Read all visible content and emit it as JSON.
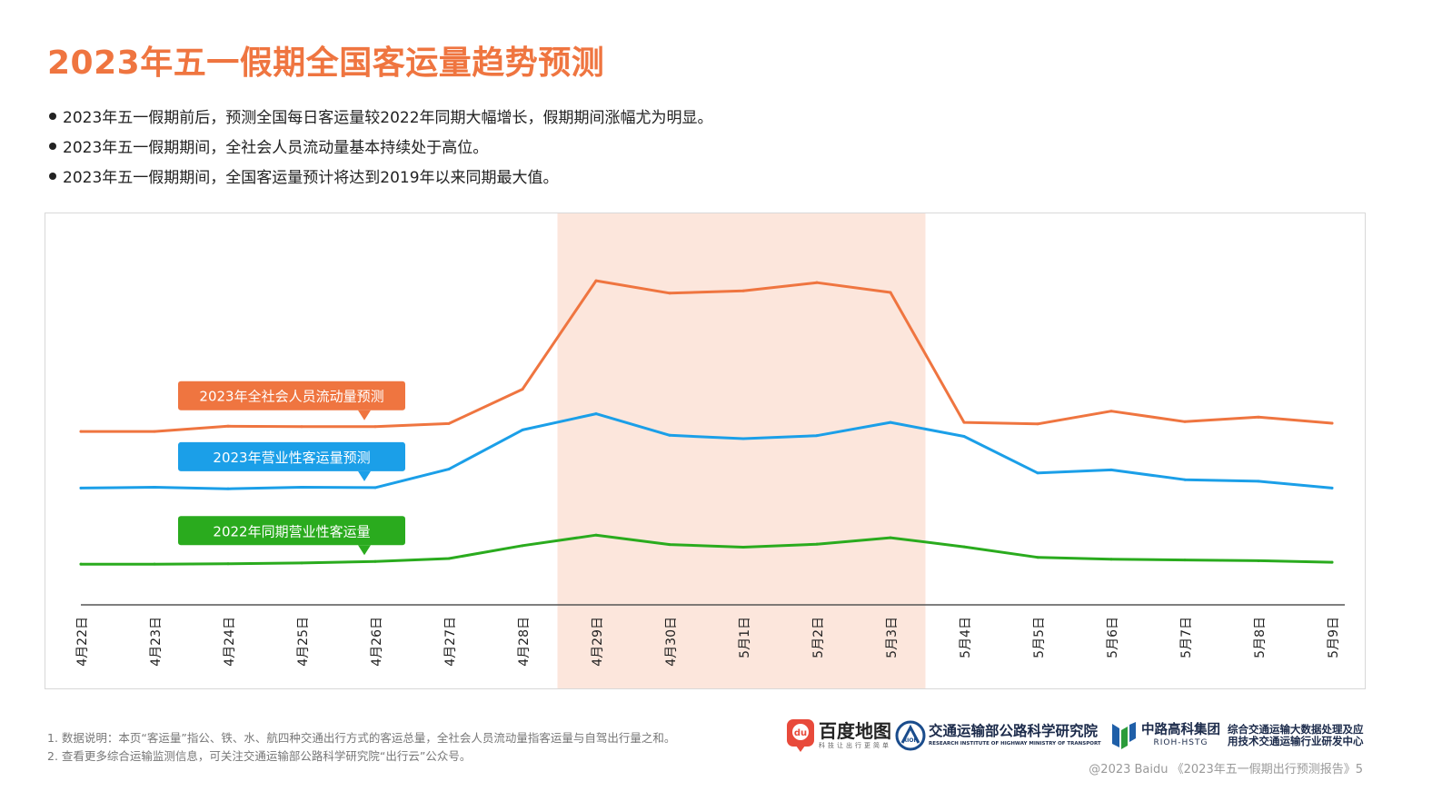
{
  "title": "2023年五一假期全国客运量趋势预测",
  "bullets": [
    "2023年五一假期前后，预测全国每日客运量较2022年同期大幅增长，假期期间涨幅尤为明显。",
    "2023年五一假期期间，全社会人员流动量基本持续处于高位。",
    "2023年五一假期期间，全国客运量预计将达到2019年以来同期最大值。"
  ],
  "chart_data": {
    "type": "line",
    "title": "",
    "xlabel": "",
    "ylabel": "",
    "y_axis_shown": false,
    "highlight_range": [
      "4月29日",
      "5月3日"
    ],
    "highlight_color": "#fce6dc",
    "categories": [
      "4月22日",
      "4月23日",
      "4月24日",
      "4月25日",
      "4月26日",
      "4月27日",
      "4月28日",
      "4月29日",
      "4月30日",
      "5月1日",
      "5月2日",
      "5月3日",
      "5月4日",
      "5月5日",
      "5月6日",
      "5月7日",
      "5月8日",
      "5月9日"
    ],
    "ylim": [
      0,
      100
    ],
    "series": [
      {
        "name": "2023年全社会人员流动量预测",
        "color": "#ef7540",
        "values": [
          46.0,
          46.0,
          47.4,
          47.3,
          47.3,
          48.1,
          57.2,
          86.0,
          82.7,
          83.3,
          85.5,
          82.9,
          48.4,
          48.0,
          51.4,
          48.6,
          49.8,
          48.2
        ]
      },
      {
        "name": "2023年营业性客运量预测",
        "color": "#1b9fe8",
        "values": [
          31.0,
          31.2,
          30.8,
          31.2,
          31.1,
          36.0,
          46.4,
          50.7,
          45.0,
          44.1,
          44.9,
          48.4,
          44.7,
          35.0,
          35.8,
          33.2,
          32.8,
          31.0
        ]
      },
      {
        "name": "2022年同期营业性客运量",
        "color": "#2aab1e",
        "values": [
          10.8,
          10.8,
          10.9,
          11.1,
          11.5,
          12.3,
          15.7,
          18.5,
          16.0,
          15.3,
          16.1,
          17.8,
          15.4,
          12.6,
          12.1,
          11.9,
          11.7,
          11.3
        ]
      }
    ]
  },
  "footnotes": [
    "1.  数据说明：本页“客运量”指公、铁、水、航四种交通出行方式的客运总量，全社会人员流动量指客运量与自驾出行量之和。",
    "2.  查看更多综合运输监测信息，可关注交通运输部公路科学研究院“出行云”公众号。"
  ],
  "logos": {
    "baidu_map": {
      "name": "百度地图",
      "badge": "du",
      "tagline": "科技让出行更简单"
    },
    "rioh": {
      "name": "交通运输部公路科学研究院",
      "subtitle": "RESEARCH INSTITUTE OF HIGHWAY MINISTRY OF TRANSPORT",
      "emblem": "RIOH"
    },
    "hstg": {
      "name": "中路高科集团",
      "subtitle": "RIOH-HSTG"
    },
    "center": {
      "line1": "综合交通运输大数据处理及应",
      "line2": "用技术交通运输行业研发中心"
    }
  },
  "copyright": "@2023 Baidu 《2023年五一假期出行预测报告》5"
}
